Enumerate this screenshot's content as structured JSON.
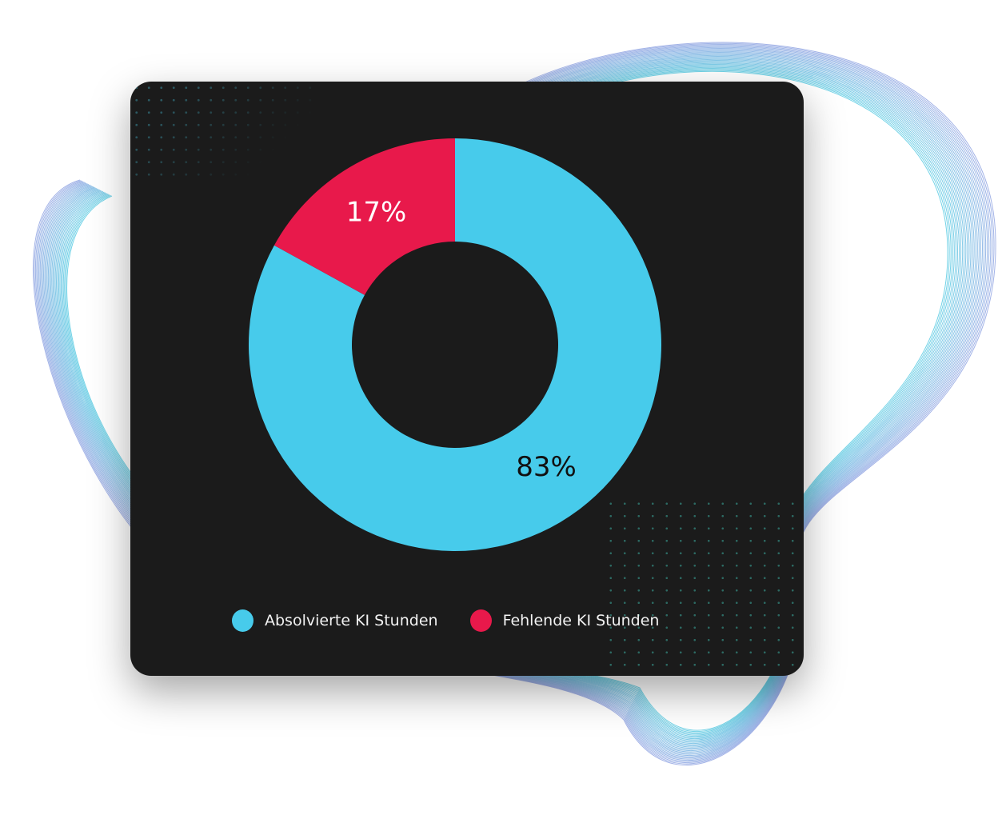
{
  "chart_data": {
    "type": "pie",
    "variant": "donut",
    "categories": [
      "Absolvierte KI Stunden",
      "Fehlende KI Stunden"
    ],
    "values": [
      83,
      17
    ],
    "data_labels": [
      "83%",
      "17%"
    ],
    "colors": [
      "#47cbeb",
      "#e8194b"
    ],
    "label_colors": [
      "#111111",
      "#ffffff"
    ],
    "legend_position": "bottom",
    "title": ""
  },
  "colors": {
    "card_background": "#1b1b1b",
    "page_background": "#ffffff"
  }
}
